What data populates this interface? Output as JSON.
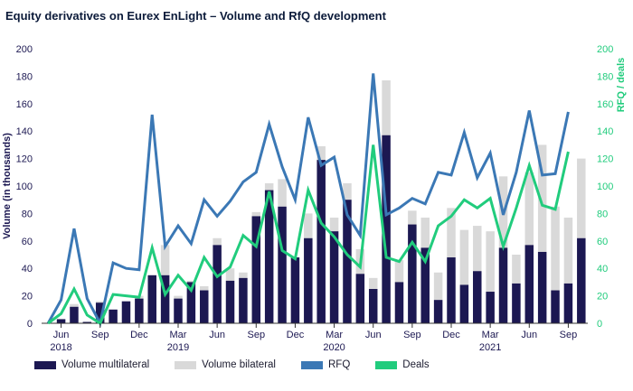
{
  "title": "Equity derivatives on Eurex EnLight – Volume and RfQ development",
  "colors": {
    "multilateral": "#1c1852",
    "bilateral": "#d9d9d9",
    "rfq": "#3b78b5",
    "deals": "#21cc7d",
    "axis_left": "#1c1852",
    "axis_right": "#21cc7d"
  },
  "chart_data": {
    "type": "bar",
    "ylabel": "Volume (in thousands)",
    "y2label": "RFQ / deals",
    "ylim": [
      0,
      200
    ],
    "y2lim": [
      0,
      200
    ],
    "yticks": [
      "0",
      "20",
      "40",
      "60",
      "80",
      "100",
      "120",
      "140",
      "160",
      "180",
      "200"
    ],
    "y2ticks": [
      "0",
      "20",
      "40",
      "60",
      "80",
      "100",
      "120",
      "140",
      "160",
      "180",
      "200"
    ],
    "month_ticks": [
      {
        "label": "Jun",
        "index": 1
      },
      {
        "label": "Sep",
        "index": 4
      },
      {
        "label": "Dec",
        "index": 7
      },
      {
        "label": "Mar",
        "index": 10
      },
      {
        "label": "Jun",
        "index": 13
      },
      {
        "label": "Sep",
        "index": 16
      },
      {
        "label": "Dec",
        "index": 19
      },
      {
        "label": "Mar",
        "index": 22
      },
      {
        "label": "Jun",
        "index": 25
      },
      {
        "label": "Sep",
        "index": 28
      },
      {
        "label": "Dec",
        "index": 31
      },
      {
        "label": "Mar",
        "index": 34
      },
      {
        "label": "Jun",
        "index": 37
      },
      {
        "label": "Sep",
        "index": 40
      }
    ],
    "year_ticks": [
      {
        "label": "2018",
        "index": 1
      },
      {
        "label": "2019",
        "index": 10
      },
      {
        "label": "2020",
        "index": 22
      },
      {
        "label": "2021",
        "index": 34
      }
    ],
    "series": [
      {
        "name": "Volume multilateral",
        "type": "bar",
        "values": [
          0,
          3,
          12,
          1,
          15,
          10,
          16,
          18,
          35,
          35,
          18,
          30,
          24,
          57,
          31,
          33,
          78,
          97,
          85,
          48,
          62,
          119,
          67,
          90,
          36,
          25,
          137,
          30,
          72,
          55,
          17,
          48,
          28,
          38,
          23,
          55,
          29,
          57,
          52,
          24,
          29,
          62
        ]
      },
      {
        "name": "Volume bilateral",
        "type": "bar",
        "values": [
          0,
          0,
          2,
          0,
          1,
          0,
          0,
          2,
          0,
          22,
          2,
          1,
          3,
          5,
          9,
          4,
          3,
          5,
          20,
          0,
          18,
          10,
          10,
          12,
          18,
          8,
          40,
          16,
          10,
          22,
          20,
          36,
          40,
          33,
          44,
          52,
          21,
          53,
          78,
          61,
          48,
          58
        ]
      },
      {
        "name": "RFQ",
        "type": "line",
        "values": [
          0,
          17,
          69,
          18,
          0,
          44,
          40,
          39,
          152,
          56,
          71,
          58,
          90,
          78,
          89,
          103,
          110,
          145,
          114,
          90,
          150,
          115,
          121,
          79,
          64,
          182,
          79,
          84,
          91,
          87,
          110,
          108,
          139,
          106,
          124,
          79,
          110,
          155,
          108,
          109,
          154
        ]
      },
      {
        "name": "Deals",
        "type": "line",
        "values": [
          0,
          7,
          25,
          6,
          0,
          21,
          20,
          19,
          55,
          21,
          35,
          24,
          48,
          34,
          41,
          64,
          56,
          96,
          53,
          47,
          97,
          73,
          63,
          50,
          41,
          130,
          48,
          45,
          59,
          45,
          71,
          78,
          90,
          84,
          91,
          56,
          84,
          115,
          86,
          83,
          125
        ]
      }
    ]
  }
}
